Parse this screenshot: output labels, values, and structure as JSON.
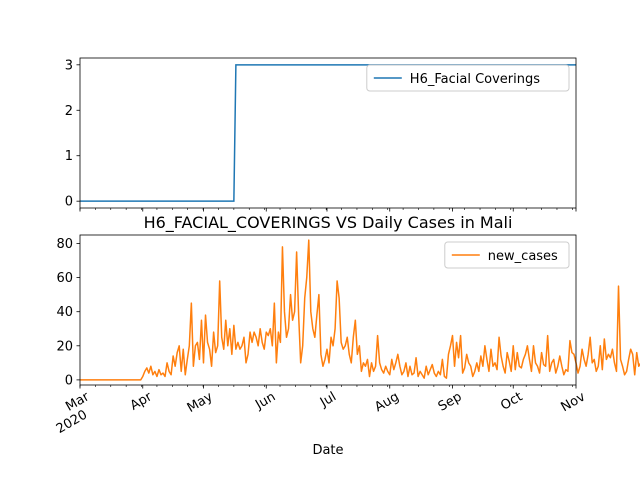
{
  "chart_data": [
    {
      "type": "line",
      "title": "",
      "xlabel": "",
      "ylabel": "",
      "xlim": [
        "2020-03-01",
        "2020-11-01"
      ],
      "ylim": [
        -0.15,
        3.15
      ],
      "y_ticks": [
        0,
        1,
        2,
        3
      ],
      "legend": {
        "position": "top-right",
        "entries": [
          "H6_Facial Coverings"
        ]
      },
      "grid": false,
      "series": [
        {
          "name": "H6_Facial Coverings",
          "color": "#1f77b4",
          "points": [
            [
              "2020-03-01",
              0
            ],
            [
              "2020-05-16",
              0
            ],
            [
              "2020-05-17",
              3
            ],
            [
              "2020-11-01",
              3
            ]
          ]
        }
      ]
    },
    {
      "type": "line",
      "title": "H6_FACIAL_COVERINGS VS Daily Cases in Mali",
      "xlabel": "Date",
      "ylabel": "",
      "xlim": [
        "2020-03-01",
        "2020-11-01"
      ],
      "ylim": [
        -3,
        85
      ],
      "y_ticks": [
        0,
        20,
        40,
        60,
        80
      ],
      "x_tick_labels": [
        {
          "date": "2020-03-01",
          "label": "Mar",
          "year": "2020"
        },
        {
          "date": "2020-04-01",
          "label": "Apr"
        },
        {
          "date": "2020-05-01",
          "label": "May"
        },
        {
          "date": "2020-06-01",
          "label": "Jun"
        },
        {
          "date": "2020-07-01",
          "label": "Jul"
        },
        {
          "date": "2020-08-01",
          "label": "Aug"
        },
        {
          "date": "2020-09-01",
          "label": "Sep"
        },
        {
          "date": "2020-10-01",
          "label": "Oct"
        },
        {
          "date": "2020-11-01",
          "label": "Nov"
        }
      ],
      "legend": {
        "position": "top-right",
        "entries": [
          "new_cases"
        ]
      },
      "grid": false,
      "series": [
        {
          "name": "new_cases",
          "color": "#ff7f0e",
          "start_date": "2020-03-01",
          "values": [
            0,
            0,
            0,
            0,
            0,
            0,
            0,
            0,
            0,
            0,
            0,
            0,
            0,
            0,
            0,
            0,
            0,
            0,
            0,
            0,
            0,
            0,
            0,
            0,
            0,
            0,
            0,
            0,
            0,
            0,
            0,
            2,
            5,
            7,
            4,
            8,
            3,
            5,
            2,
            6,
            3,
            4,
            2,
            10,
            5,
            3,
            14,
            8,
            16,
            20,
            5,
            18,
            3,
            12,
            20,
            45,
            8,
            20,
            22,
            12,
            35,
            10,
            38,
            22,
            18,
            8,
            28,
            16,
            20,
            58,
            25,
            18,
            35,
            20,
            30,
            15,
            32,
            18,
            22,
            18,
            20,
            25,
            10,
            15,
            28,
            22,
            28,
            25,
            20,
            30,
            22,
            18,
            28,
            26,
            30,
            20,
            45,
            10,
            28,
            22,
            78,
            40,
            25,
            30,
            50,
            35,
            40,
            75,
            38,
            10,
            20,
            48,
            60,
            82,
            40,
            30,
            25,
            38,
            50,
            15,
            8,
            12,
            18,
            10,
            25,
            20,
            30,
            58,
            48,
            22,
            18,
            20,
            25,
            15,
            10,
            25,
            35,
            15,
            20,
            5,
            10,
            8,
            12,
            2,
            10,
            5,
            8,
            26,
            10,
            6,
            4,
            8,
            5,
            3,
            12,
            6,
            10,
            15,
            8,
            3,
            5,
            10,
            2,
            8,
            3,
            4,
            13,
            2,
            5,
            3,
            1,
            8,
            3,
            6,
            9,
            4,
            2,
            5,
            3,
            12,
            2,
            1,
            15,
            20,
            26,
            8,
            22,
            13,
            26,
            4,
            7,
            15,
            10,
            8,
            2,
            5,
            10,
            5,
            14,
            8,
            20,
            12,
            5,
            18,
            8,
            10,
            6,
            25,
            14,
            8,
            4,
            16,
            11,
            5,
            20,
            6,
            16,
            8,
            7,
            12,
            15,
            20,
            12,
            5,
            20,
            10,
            8,
            4,
            16,
            9,
            8,
            26,
            5,
            10,
            12,
            4,
            8,
            14,
            8,
            3,
            6,
            5,
            23,
            16,
            15,
            10,
            4,
            8,
            18,
            12,
            8,
            15,
            25,
            10,
            12,
            5,
            8,
            20,
            6,
            24,
            12,
            15,
            13,
            18,
            10,
            5,
            55,
            12,
            8,
            3,
            5,
            12,
            18,
            15,
            3,
            16,
            8,
            10,
            28,
            12,
            8,
            15,
            16,
            8,
            7
          ]
        }
      ]
    }
  ]
}
